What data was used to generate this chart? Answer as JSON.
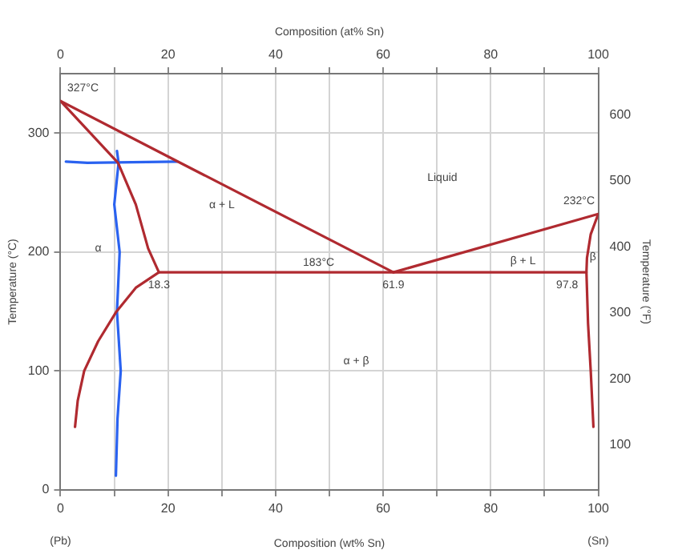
{
  "chart_data": {
    "type": "line",
    "xlabel": "Composition (wt% Sn)",
    "x2label": "Composition (at% Sn)",
    "ylabel": "Temperature (°C)",
    "y2label": "Temperature (°F)",
    "xlim": [
      0,
      100
    ],
    "xticks": [
      0,
      {
        "value": 10,
        "label": null
      },
      20,
      {
        "value": 30,
        "label": null
      },
      40,
      {
        "value": 50,
        "label": null
      },
      60,
      {
        "value": 70,
        "label": null
      },
      80,
      {
        "value": 90,
        "label": null
      },
      100
    ],
    "x2lim": [
      0,
      100
    ],
    "x2ticks": [
      0,
      {
        "value": 10,
        "label": null
      },
      20,
      {
        "value": 30,
        "label": null
      },
      40,
      {
        "value": 50,
        "label": null
      },
      60,
      {
        "value": 70,
        "label": null
      },
      80,
      {
        "value": 90,
        "label": null
      },
      100
    ],
    "ylim": [
      0,
      350
    ],
    "yticks": [
      0,
      100,
      200,
      300
    ],
    "y2lim": [
      32,
      662
    ],
    "y2ticks": [
      100,
      200,
      300,
      400,
      500,
      600
    ],
    "grid": true,
    "legend": false,
    "marker": "none",
    "line_style": "solid",
    "series": [
      {
        "color": "#b02a30",
        "x": [
          0,
          21,
          61.9
        ],
        "values": [
          327,
          278,
          183
        ]
      },
      {
        "color": "#b02a30",
        "x": [
          61.9,
          100
        ],
        "values": [
          183,
          232
        ]
      },
      {
        "color": "#b02a30",
        "x": [
          0,
          10.7,
          14,
          16.3,
          18.3,
          14,
          10.4,
          7,
          4.4,
          3.2,
          2.7
        ],
        "values": [
          327,
          275,
          240,
          203,
          183,
          170,
          150,
          125,
          100,
          75,
          53
        ]
      },
      {
        "color": "#b02a30",
        "x": [
          18.3,
          97.8
        ],
        "values": [
          183,
          183
        ]
      },
      {
        "color": "#b02a30",
        "x": [
          100,
          98.6,
          97.9,
          97.8,
          98.1,
          98.6,
          99.1
        ],
        "values": [
          232,
          215,
          195,
          183,
          140,
          100,
          53
        ]
      },
      {
        "color": "#2a62f0",
        "x": [
          10.5,
          10.8,
          10,
          11,
          10.5,
          11.2,
          10.6,
          10.3
        ],
        "values": [
          285,
          275,
          240,
          200,
          150,
          100,
          60,
          12
        ]
      },
      {
        "color": "#2a62f0",
        "x": [
          1,
          5,
          21.7
        ],
        "values": [
          276,
          275,
          276
        ]
      }
    ],
    "annotations": [
      {
        "text": "327°C",
        "x": 0,
        "y": 327
      },
      {
        "text": "183°C",
        "x": 48,
        "y": 183
      },
      {
        "text": "18.3",
        "x": 18.3,
        "y": 183
      },
      {
        "text": "61.9",
        "x": 61.9,
        "y": 183
      },
      {
        "text": "232°C",
        "x": 100,
        "y": 232
      },
      {
        "text": "97.8",
        "x": 97.8,
        "y": 183
      },
      "Liquid",
      "α + L",
      "α",
      "β + L",
      "β",
      "α + β",
      "(Pb)",
      "(Sn)"
    ]
  }
}
